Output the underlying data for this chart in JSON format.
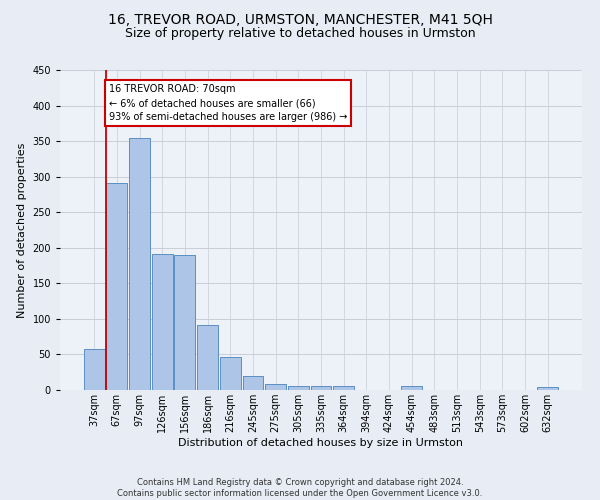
{
  "title1": "16, TREVOR ROAD, URMSTON, MANCHESTER, M41 5QH",
  "title2": "Size of property relative to detached houses in Urmston",
  "xlabel": "Distribution of detached houses by size in Urmston",
  "ylabel": "Number of detached properties",
  "categories": [
    "37sqm",
    "67sqm",
    "97sqm",
    "126sqm",
    "156sqm",
    "186sqm",
    "216sqm",
    "245sqm",
    "275sqm",
    "305sqm",
    "335sqm",
    "364sqm",
    "394sqm",
    "424sqm",
    "454sqm",
    "483sqm",
    "513sqm",
    "543sqm",
    "573sqm",
    "602sqm",
    "632sqm"
  ],
  "values": [
    58,
    291,
    355,
    191,
    190,
    92,
    46,
    19,
    9,
    5,
    5,
    5,
    0,
    0,
    5,
    0,
    0,
    0,
    0,
    0,
    4
  ],
  "bar_color": "#adc6e8",
  "bar_edge_color": "#5a8fc2",
  "ylim": [
    0,
    450
  ],
  "yticks": [
    0,
    50,
    100,
    150,
    200,
    250,
    300,
    350,
    400,
    450
  ],
  "vline_color": "#cc0000",
  "annotation_line1": "16 TREVOR ROAD: 70sqm",
  "annotation_line2": "← 6% of detached houses are smaller (66)",
  "annotation_line3": "93% of semi-detached houses are larger (986) →",
  "annotation_box_color": "#ffffff",
  "annotation_box_edge": "#cc0000",
  "footer": "Contains HM Land Registry data © Crown copyright and database right 2024.\nContains public sector information licensed under the Open Government Licence v3.0.",
  "bg_color": "#e8edf5",
  "plot_bg_color": "#edf1f8",
  "grid_color": "#c8cdd8",
  "title1_fontsize": 10,
  "title2_fontsize": 9,
  "ylabel_fontsize": 8,
  "xlabel_fontsize": 8,
  "tick_fontsize": 7,
  "footer_fontsize": 6
}
